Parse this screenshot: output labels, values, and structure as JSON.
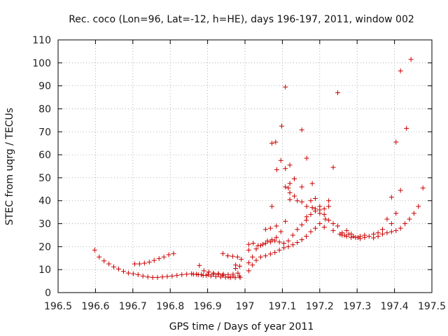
{
  "chart_data": {
    "type": "scatter",
    "title": "Rec. coco (Lon=96, Lat=-12, h=HE), days 196-197, 2011, window 002",
    "xlabel": "GPS time / Days of year 2011",
    "ylabel": "STEC from uqrg / TECUs",
    "xlim": [
      196.5,
      197.5
    ],
    "ylim": [
      0,
      110
    ],
    "xticks": [
      "196.5",
      "196.6",
      "196.7",
      "196.8",
      "196.9",
      "197",
      "197.1",
      "197.2",
      "197.3",
      "197.4",
      "197.5"
    ],
    "yticks": [
      "0",
      "10",
      "20",
      "30",
      "40",
      "50",
      "60",
      "70",
      "80",
      "90",
      "100",
      "110"
    ],
    "grid": true,
    "marker": "+",
    "color": "#cc0000",
    "series": [
      {
        "points": [
          [
            196.598,
            18.5
          ],
          [
            196.61,
            15.5
          ],
          [
            196.623,
            13.8
          ],
          [
            196.636,
            12.5
          ],
          [
            196.649,
            11.2
          ],
          [
            196.662,
            10.3
          ],
          [
            196.675,
            9.2
          ],
          [
            196.688,
            8.5
          ],
          [
            196.701,
            8.2
          ],
          [
            196.714,
            7.8
          ],
          [
            196.727,
            7.2
          ],
          [
            196.74,
            6.8
          ],
          [
            196.753,
            6.6
          ],
          [
            196.766,
            6.6
          ],
          [
            196.779,
            6.8
          ],
          [
            196.792,
            7.0
          ],
          [
            196.805,
            7.2
          ],
          [
            196.818,
            7.5
          ],
          [
            196.831,
            7.8
          ],
          [
            196.844,
            8.0
          ],
          [
            196.857,
            8.2
          ],
          [
            196.87,
            8.0
          ],
          [
            196.883,
            7.8
          ],
          [
            196.896,
            7.5
          ],
          [
            196.909,
            7.2
          ],
          [
            196.922,
            7.0
          ],
          [
            196.935,
            6.8
          ],
          [
            196.948,
            6.7
          ],
          [
            196.961,
            6.5
          ],
          [
            196.974,
            6.5
          ],
          [
            196.987,
            6.5
          ],
          [
            196.705,
            12.5
          ],
          [
            196.718,
            12.5
          ],
          [
            196.731,
            12.8
          ],
          [
            196.744,
            13.3
          ],
          [
            196.757,
            14.0
          ],
          [
            196.77,
            14.8
          ],
          [
            196.783,
            15.5
          ],
          [
            196.796,
            16.5
          ],
          [
            196.809,
            17.0
          ],
          [
            196.878,
            11.8
          ],
          [
            196.89,
            9.5
          ],
          [
            196.903,
            9.0
          ],
          [
            196.916,
            8.5
          ],
          [
            196.929,
            8.2
          ],
          [
            196.942,
            8.0
          ],
          [
            196.955,
            7.8
          ],
          [
            196.968,
            8.0
          ],
          [
            196.981,
            8.5
          ],
          [
            196.941,
            17.0
          ],
          [
            196.954,
            16.0
          ],
          [
            196.967,
            15.8
          ],
          [
            196.98,
            15.5
          ],
          [
            196.99,
            14.5
          ],
          [
            196.975,
            10.5
          ],
          [
            196.986,
            11.5
          ],
          [
            196.975,
            12.0
          ],
          [
            196.985,
            7.2
          ],
          [
            196.968,
            7.2
          ],
          [
            196.955,
            6.8
          ],
          [
            196.94,
            7.5
          ],
          [
            196.928,
            8.0
          ],
          [
            196.915,
            8.0
          ],
          [
            196.901,
            7.8
          ],
          [
            196.888,
            7.5
          ],
          [
            196.875,
            7.8
          ],
          [
            196.862,
            8.0
          ],
          [
            197.01,
            9.5
          ],
          [
            197.02,
            12.0
          ],
          [
            197.03,
            14.0
          ],
          [
            197.042,
            15.5
          ],
          [
            197.055,
            16.0
          ],
          [
            197.068,
            16.8
          ],
          [
            197.08,
            17.5
          ],
          [
            197.092,
            18.5
          ],
          [
            197.104,
            19.5
          ],
          [
            197.116,
            20.0
          ],
          [
            197.128,
            20.8
          ],
          [
            197.14,
            21.8
          ],
          [
            197.152,
            23.0
          ],
          [
            197.164,
            24.5
          ],
          [
            197.176,
            26.5
          ],
          [
            197.188,
            28.0
          ],
          [
            197.2,
            30.0
          ],
          [
            197.212,
            28.5
          ],
          [
            197.01,
            13.0
          ],
          [
            197.02,
            15.5
          ],
          [
            197.03,
            19.0
          ],
          [
            197.042,
            20.5
          ],
          [
            197.055,
            21.5
          ],
          [
            197.068,
            22.0
          ],
          [
            197.08,
            22.5
          ],
          [
            197.092,
            22.0
          ],
          [
            197.104,
            21.5
          ],
          [
            197.116,
            22.5
          ],
          [
            197.128,
            25.0
          ],
          [
            197.14,
            27.5
          ],
          [
            197.152,
            29.5
          ],
          [
            197.164,
            31.5
          ],
          [
            197.176,
            34.0
          ],
          [
            197.188,
            35.5
          ],
          [
            197.2,
            36.0
          ],
          [
            197.01,
            18.5
          ],
          [
            197.01,
            21.0
          ],
          [
            197.022,
            21.5
          ],
          [
            197.035,
            20.5
          ],
          [
            197.048,
            21.0
          ],
          [
            197.06,
            22.5
          ],
          [
            197.072,
            23.0
          ],
          [
            197.084,
            24.0
          ],
          [
            197.096,
            26.5
          ],
          [
            197.108,
            31.0
          ],
          [
            197.055,
            27.5
          ],
          [
            197.068,
            28.0
          ],
          [
            197.084,
            29.0
          ],
          [
            197.072,
            37.5
          ],
          [
            197.072,
            65.0
          ],
          [
            197.082,
            65.5
          ],
          [
            197.085,
            53.5
          ],
          [
            197.096,
            57.5
          ],
          [
            197.098,
            72.5
          ],
          [
            197.108,
            89.5
          ],
          [
            197.108,
            54.0
          ],
          [
            197.108,
            46.0
          ],
          [
            197.116,
            45.5
          ],
          [
            197.12,
            55.5
          ],
          [
            197.12,
            47.5
          ],
          [
            197.12,
            43.5
          ],
          [
            197.12,
            40.5
          ],
          [
            197.132,
            49.5
          ],
          [
            197.132,
            42.0
          ],
          [
            197.14,
            40.0
          ],
          [
            197.152,
            46.0
          ],
          [
            197.152,
            70.8
          ],
          [
            197.152,
            39.5
          ],
          [
            197.165,
            58.5
          ],
          [
            197.165,
            37.5
          ],
          [
            197.165,
            33.0
          ],
          [
            197.176,
            40.0
          ],
          [
            197.18,
            37.0
          ],
          [
            197.18,
            47.5
          ],
          [
            197.188,
            36.5
          ],
          [
            197.188,
            41.0
          ],
          [
            197.2,
            37.5
          ],
          [
            197.2,
            34.5
          ],
          [
            197.212,
            36.5
          ],
          [
            197.212,
            34.0
          ],
          [
            197.215,
            32.0
          ],
          [
            197.224,
            40.0
          ],
          [
            197.224,
            37.5
          ],
          [
            197.224,
            31.5
          ],
          [
            197.236,
            54.5
          ],
          [
            197.236,
            30.0
          ],
          [
            197.236,
            27.0
          ],
          [
            197.248,
            29.0
          ],
          [
            197.248,
            87.0
          ],
          [
            197.26,
            26.0
          ],
          [
            197.26,
            25.0
          ],
          [
            197.272,
            27.0
          ],
          [
            197.272,
            24.5
          ],
          [
            197.284,
            25.5
          ],
          [
            197.284,
            24.0
          ],
          [
            197.296,
            24.0
          ],
          [
            197.308,
            24.5
          ],
          [
            197.308,
            23.5
          ],
          [
            197.32,
            24.0
          ],
          [
            197.32,
            25.0
          ],
          [
            197.332,
            24.5
          ],
          [
            197.344,
            25.5
          ],
          [
            197.344,
            23.8
          ],
          [
            197.356,
            26.0
          ],
          [
            197.356,
            24.5
          ],
          [
            197.368,
            27.5
          ],
          [
            197.368,
            25.5
          ],
          [
            197.38,
            32.0
          ],
          [
            197.38,
            26.0
          ],
          [
            197.392,
            30.0
          ],
          [
            197.392,
            41.5
          ],
          [
            197.392,
            26.5
          ],
          [
            197.404,
            65.5
          ],
          [
            197.404,
            34.5
          ],
          [
            197.404,
            27.0
          ],
          [
            197.416,
            96.5
          ],
          [
            197.416,
            44.5
          ],
          [
            197.416,
            28.0
          ],
          [
            197.428,
            30.0
          ],
          [
            197.432,
            71.5
          ],
          [
            197.44,
            32.0
          ],
          [
            197.444,
            101.5
          ],
          [
            197.452,
            34.5
          ],
          [
            197.464,
            37.5
          ],
          [
            197.476,
            45.5
          ],
          [
            197.254,
            25.5
          ],
          [
            197.266,
            25.0
          ],
          [
            197.278,
            25.5
          ],
          [
            197.29,
            24.5
          ],
          [
            197.302,
            24.0
          ]
        ]
      }
    ]
  }
}
